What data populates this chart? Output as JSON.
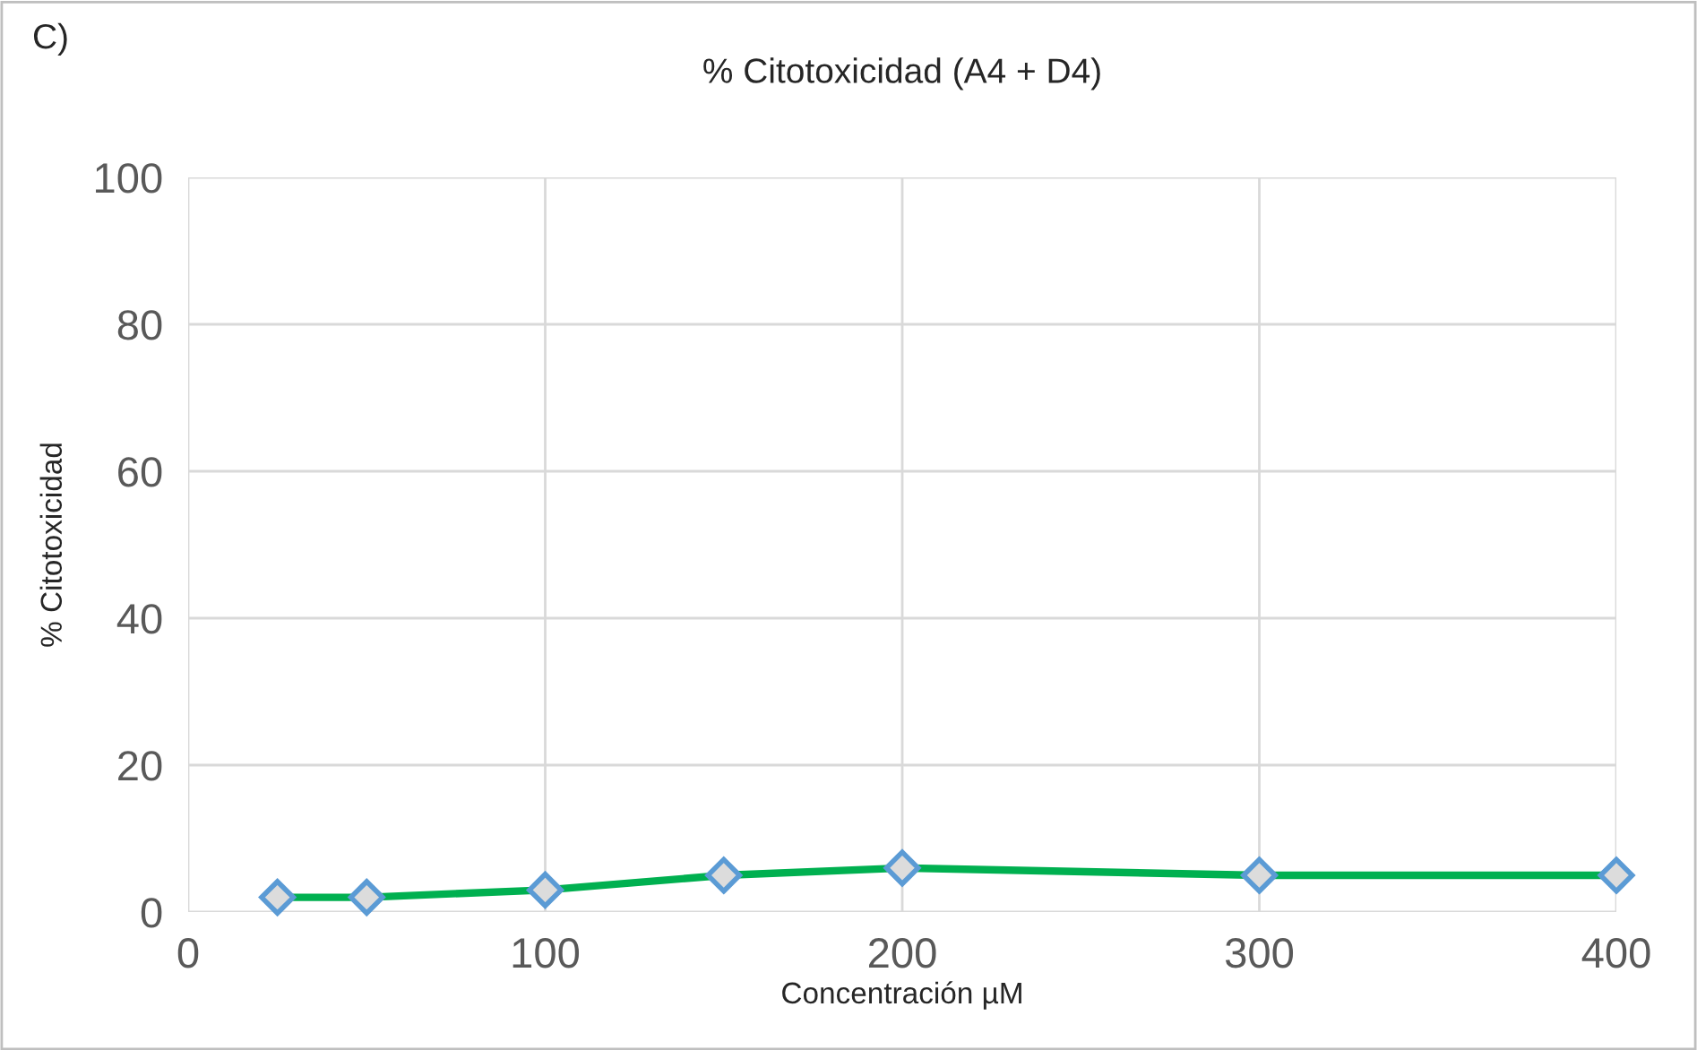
{
  "chart_data": {
    "type": "line",
    "title": "% Citotoxicidad (A4 + D4)",
    "xlabel": "Concentración µM",
    "ylabel": "% Citotoxicidad",
    "annotations": [
      "C)"
    ],
    "x": [
      25,
      50,
      100,
      150,
      200,
      300,
      400
    ],
    "series": [
      {
        "color": "#00b050",
        "values": [
          2,
          2,
          3,
          5,
          6,
          5,
          5
        ]
      }
    ],
    "xlim": [
      0,
      400
    ],
    "xticks": [
      0,
      100,
      200,
      300,
      400
    ],
    "ylim": [
      0,
      100
    ],
    "yticks": [
      0,
      20,
      40,
      60,
      80,
      100
    ],
    "grid": true,
    "marker": "diamond",
    "line_style": "solid",
    "legend": false
  }
}
